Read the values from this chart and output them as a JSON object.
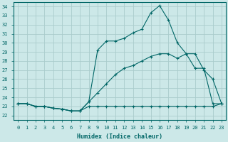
{
  "xlabel": "Humidex (Indice chaleur)",
  "xlim": [
    -0.5,
    23.5
  ],
  "ylim": [
    21.5,
    34.5
  ],
  "xticks": [
    0,
    1,
    2,
    3,
    4,
    5,
    6,
    7,
    8,
    9,
    10,
    11,
    12,
    13,
    14,
    15,
    16,
    17,
    18,
    19,
    20,
    21,
    22,
    23
  ],
  "yticks": [
    22,
    23,
    24,
    25,
    26,
    27,
    28,
    29,
    30,
    31,
    32,
    33,
    34
  ],
  "bg_color": "#cce8e8",
  "grid_color": "#aacccc",
  "line_color": "#006666",
  "line1_x": [
    0,
    1,
    2,
    3,
    4,
    5,
    6,
    7,
    8,
    9,
    10,
    11,
    12,
    13,
    14,
    15,
    16,
    17,
    18,
    19,
    20,
    21,
    22,
    23
  ],
  "line1_y": [
    23.3,
    23.3,
    23.0,
    23.0,
    22.8,
    22.7,
    22.5,
    22.5,
    23.5,
    29.2,
    30.2,
    30.2,
    30.5,
    31.1,
    31.5,
    33.3,
    34.1,
    32.5,
    30.0,
    28.8,
    27.2,
    27.2,
    23.3,
    23.3
  ],
  "line2_x": [
    0,
    1,
    2,
    3,
    4,
    5,
    6,
    7,
    8,
    9,
    10,
    11,
    12,
    13,
    14,
    15,
    16,
    17,
    18,
    19,
    20,
    21,
    22,
    23
  ],
  "line2_y": [
    23.3,
    23.3,
    23.0,
    23.0,
    22.8,
    22.7,
    22.5,
    22.5,
    23.5,
    24.5,
    25.5,
    26.5,
    27.2,
    27.5,
    28.0,
    28.5,
    28.8,
    28.8,
    28.3,
    28.8,
    28.8,
    27.0,
    26.0,
    23.3
  ],
  "line3_x": [
    0,
    1,
    2,
    3,
    4,
    5,
    6,
    7,
    8,
    9,
    10,
    11,
    12,
    13,
    14,
    15,
    16,
    17,
    18,
    19,
    20,
    21,
    22,
    23
  ],
  "line3_y": [
    23.3,
    23.3,
    23.0,
    23.0,
    22.8,
    22.7,
    22.5,
    22.5,
    23.0,
    23.0,
    23.0,
    23.0,
    23.0,
    23.0,
    23.0,
    23.0,
    23.0,
    23.0,
    23.0,
    23.0,
    23.0,
    23.0,
    23.0,
    23.3
  ]
}
